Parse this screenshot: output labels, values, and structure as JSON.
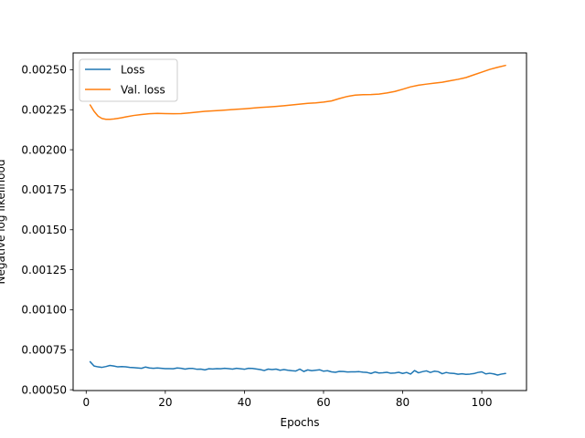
{
  "chart_data": {
    "type": "line",
    "title": "",
    "xlabel": "Epochs",
    "ylabel": "Negative log likelihood",
    "xlim": [
      -3.3,
      111.3
    ],
    "ylim": [
      0.000495,
      0.002605
    ],
    "xticks": [
      0,
      20,
      40,
      60,
      80,
      100
    ],
    "xtick_labels": [
      "0",
      "20",
      "40",
      "60",
      "80",
      "100"
    ],
    "yticks": [
      0.0005,
      0.00075,
      0.001,
      0.00125,
      0.0015,
      0.00175,
      0.002,
      0.00225,
      0.0025
    ],
    "ytick_labels": [
      "0.00050",
      "0.00075",
      "0.00100",
      "0.00125",
      "0.00150",
      "0.00175",
      "0.00200",
      "0.00225",
      "0.00250"
    ],
    "grid": false,
    "legend_position": "top-left",
    "series": [
      {
        "name": "Loss",
        "color": "#1f77b4",
        "x": [
          1,
          2,
          3,
          4,
          5,
          6,
          7,
          8,
          9,
          10,
          11,
          12,
          13,
          14,
          15,
          16,
          17,
          18,
          19,
          20,
          21,
          22,
          23,
          24,
          25,
          26,
          27,
          28,
          29,
          30,
          31,
          32,
          33,
          34,
          35,
          36,
          37,
          38,
          39,
          40,
          41,
          42,
          43,
          44,
          45,
          46,
          47,
          48,
          49,
          50,
          51,
          52,
          53,
          54,
          55,
          56,
          57,
          58,
          59,
          60,
          61,
          62,
          63,
          64,
          65,
          66,
          67,
          68,
          69,
          70,
          71,
          72,
          73,
          74,
          75,
          76,
          77,
          78,
          79,
          80,
          81,
          82,
          83,
          84,
          85,
          86,
          87,
          88,
          89,
          90,
          91,
          92,
          93,
          94,
          95,
          96,
          97,
          98,
          99,
          100,
          101,
          102,
          103,
          104,
          105,
          106
        ],
        "y": [
          0.000675,
          0.000648,
          0.000643,
          0.00064,
          0.000645,
          0.000652,
          0.000648,
          0.000643,
          0.000645,
          0.000643,
          0.00064,
          0.000638,
          0.000636,
          0.000634,
          0.000642,
          0.000636,
          0.000634,
          0.000636,
          0.000634,
          0.000632,
          0.000632,
          0.000631,
          0.000636,
          0.000634,
          0.000629,
          0.000633,
          0.000633,
          0.000628,
          0.000629,
          0.000624,
          0.000631,
          0.00063,
          0.000632,
          0.000631,
          0.000634,
          0.000632,
          0.000629,
          0.000634,
          0.000631,
          0.000628,
          0.000634,
          0.000633,
          0.00063,
          0.000626,
          0.00062,
          0.000629,
          0.000626,
          0.000629,
          0.000622,
          0.000626,
          0.000622,
          0.000619,
          0.000617,
          0.000629,
          0.000614,
          0.000624,
          0.000619,
          0.000622,
          0.000625,
          0.000616,
          0.000619,
          0.000612,
          0.000609,
          0.000615,
          0.000614,
          0.000611,
          0.000612,
          0.000612,
          0.000613,
          0.00061,
          0.000608,
          0.000602,
          0.000611,
          0.000605,
          0.000606,
          0.000609,
          0.000603,
          0.000605,
          0.000609,
          0.000602,
          0.000608,
          0.000598,
          0.00062,
          0.000606,
          0.000613,
          0.000618,
          0.000608,
          0.000616,
          0.000613,
          0.0006,
          0.000608,
          0.000603,
          0.000602,
          0.000597,
          0.0006,
          0.000596,
          0.000598,
          0.000601,
          0.000608,
          0.000612,
          0.000599,
          0.000603,
          0.000599,
          0.000592,
          0.000598,
          0.000602
        ]
      },
      {
        "name": "Val. loss",
        "color": "#ff7f0e",
        "x": [
          1,
          2,
          3,
          4,
          5,
          6,
          7,
          8,
          9,
          10,
          12,
          14,
          16,
          18,
          20,
          22,
          24,
          26,
          28,
          30,
          32,
          34,
          36,
          38,
          40,
          42,
          44,
          46,
          48,
          50,
          52,
          54,
          56,
          58,
          60,
          62,
          64,
          66,
          68,
          70,
          72,
          74,
          76,
          78,
          80,
          82,
          84,
          86,
          88,
          90,
          92,
          94,
          96,
          98,
          100,
          102,
          104,
          106
        ],
        "y": [
          0.00228,
          0.00224,
          0.00221,
          0.002195,
          0.00219,
          0.00219,
          0.002192,
          0.002196,
          0.0022,
          0.002205,
          0.002214,
          0.00222,
          0.002225,
          0.002227,
          0.002226,
          0.002225,
          0.002226,
          0.00223,
          0.002235,
          0.00224,
          0.002243,
          0.002246,
          0.002249,
          0.002253,
          0.002256,
          0.00226,
          0.002264,
          0.002267,
          0.002271,
          0.002275,
          0.00228,
          0.002285,
          0.00229,
          0.002293,
          0.002298,
          0.002305,
          0.00232,
          0.002333,
          0.002341,
          0.002344,
          0.002345,
          0.002348,
          0.002355,
          0.002364,
          0.002378,
          0.002393,
          0.002403,
          0.00241,
          0.002416,
          0.002422,
          0.002431,
          0.00244,
          0.002451,
          0.002468,
          0.002485,
          0.002502,
          0.002515,
          0.002527
        ]
      }
    ]
  }
}
